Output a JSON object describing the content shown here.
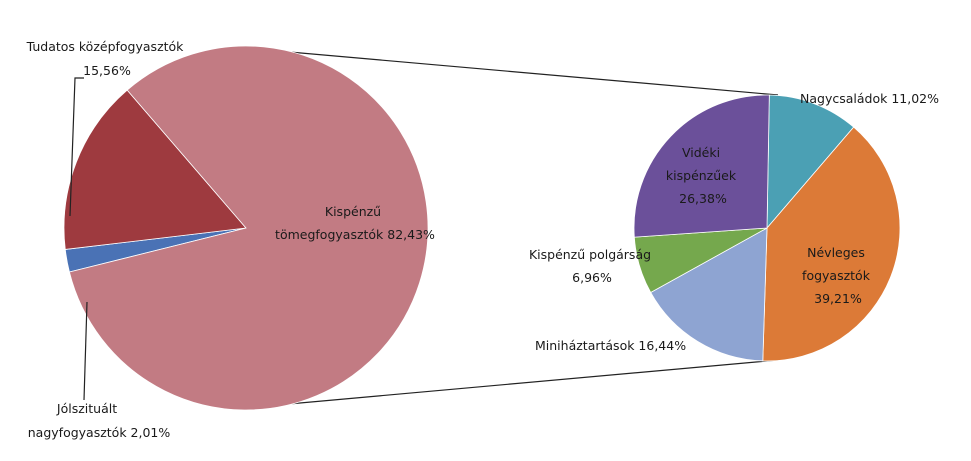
{
  "chart_data": [
    {
      "type": "pie",
      "slices": [
        {
          "label": "Kispénzű tömegfogyasztók",
          "value": 82.43,
          "display": "82,43%",
          "color": "#c27b83"
        },
        {
          "label": "Tudatos középfogyasztók",
          "value": 15.56,
          "display": "15,56%",
          "color": "#9e3a3f"
        },
        {
          "label": "Jólszituált nagyfogyasztók",
          "value": 2.01,
          "display": "2,01%",
          "color": "#4a72b5"
        }
      ],
      "labels": {
        "main": [
          "Kispénzű",
          "tömegfogyasztók 82,43%"
        ],
        "tudatos": [
          "Tudatos középfogyasztók",
          "15,56%"
        ],
        "jolszitualt": [
          "Jólszituált",
          "nagyfogyasztók 2,01%"
        ]
      }
    },
    {
      "type": "pie",
      "breakdown_of": "Kispénzű tömegfogyasztók",
      "slices": [
        {
          "label": "Nagycsaládok",
          "value": 11.02,
          "display": "11,02%",
          "color": "#4ba0b4"
        },
        {
          "label": "Névleges fogyasztók",
          "value": 39.21,
          "display": "39,21%",
          "color": "#dc7a37"
        },
        {
          "label": "Miniháztartások",
          "value": 16.44,
          "display": "16,44%",
          "color": "#8ea4d2"
        },
        {
          "label": "Kispénzű polgárság",
          "value": 6.96,
          "display": "6,96%",
          "color": "#75a84d"
        },
        {
          "label": "Vidéki kispénzűek",
          "value": 26.38,
          "display": "26,38%",
          "color": "#6b509a"
        }
      ],
      "labels": {
        "nagycsaladok": [
          "Nagycsaládok 11,02%"
        ],
        "nevleges": [
          "Névleges",
          "fogyasztók",
          "39,21%"
        ],
        "minihaz": [
          "Miniháztartások 16,44%"
        ],
        "polgarsag": [
          "Kispénzű polgárság",
          "6,96%"
        ],
        "videki": [
          "Vidéki",
          "kispénzűek",
          "26,38%"
        ]
      }
    }
  ]
}
